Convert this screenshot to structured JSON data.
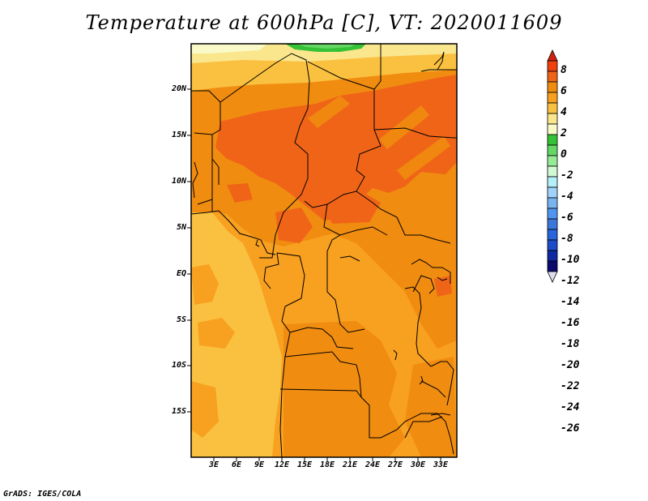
{
  "title": "Temperature at 600hPa [C], VT: 2020011609",
  "credit": "GrADS: IGES/COLA",
  "map": {
    "lat_ticks": [
      "20N",
      "15N",
      "10N",
      "5N",
      "EQ",
      "5S",
      "10S",
      "15S"
    ],
    "lon_ticks": [
      "3E",
      "6E",
      "9E",
      "12E",
      "15E",
      "18E",
      "21E",
      "24E",
      "27E",
      "30E",
      "33E"
    ]
  },
  "colorbar": {
    "labels": [
      "8",
      "6",
      "4",
      "2",
      "0",
      "-2",
      "-4",
      "-6",
      "-8",
      "-10",
      "-12",
      "-14",
      "-16",
      "-18",
      "-20",
      "-22",
      "-24",
      "-26"
    ],
    "colors": [
      "#d22010",
      "#f04010",
      "#f06418",
      "#f08c10",
      "#f8a020",
      "#fac040",
      "#fae68c",
      "#fafac8",
      "#36c236",
      "#64d764",
      "#96ec96",
      "#d2fad2",
      "#b4f0fa",
      "#a0d2fa",
      "#78b4f0",
      "#5096f0",
      "#3c78dc",
      "#2864dc",
      "#1e4bc8",
      "#1028a0",
      "#0a0a6e",
      "#dcdcf0"
    ]
  }
}
